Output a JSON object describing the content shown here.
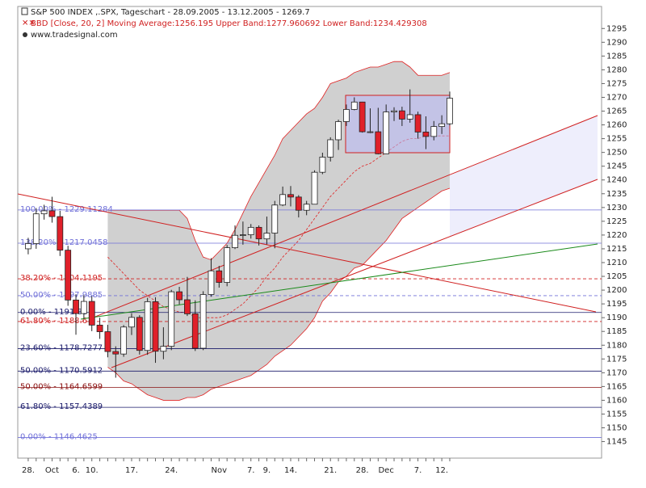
{
  "chart_data": {
    "type": "candlestick",
    "title": "S&P 500 INDEX ,.SPX, Tageschart - 28.09.2005 - 13.12.2005 - 1269.7",
    "subtitle": "BBD [Close, 20, 2] Moving Average:1256.195 Upper Band:1277.960692 Lower Band:1234.429308",
    "source": "www.tradesignal.com",
    "categories": [
      "28.",
      null,
      null,
      "Oct",
      null,
      null,
      "6.",
      null,
      "10.",
      null,
      null,
      null,
      null,
      "17.",
      null,
      null,
      null,
      null,
      "24.",
      null,
      null,
      null,
      null,
      null,
      "Nov",
      null,
      null,
      null,
      "7.",
      null,
      "9.",
      null,
      null,
      "14.",
      null,
      null,
      null,
      null,
      "21.",
      null,
      null,
      null,
      "28.",
      null,
      null,
      "Dec",
      null,
      null,
      null,
      "7.",
      null,
      null,
      "12.",
      null
    ],
    "open": [
      1215.0,
      1216.9,
      1227.7,
      1228.8,
      1226.7,
      1214.5,
      1196.4,
      1191.5,
      1195.9,
      1187.3,
      1184.9,
      1177.7,
      1176.8,
      1186.6,
      1190.1,
      1178.1,
      1195.8,
      1177.8,
      1179.6,
      1199.4,
      1196.5,
      1191.4,
      1178.9,
      1198.4,
      1207.0,
      1202.8,
      1215.4,
      1219.9,
      1220.1,
      1222.8,
      1218.6,
      1220.7,
      1230.9,
      1234.7,
      1233.8,
      1229.0,
      1231.2,
      1242.8,
      1248.3,
      1254.6,
      1261.2,
      1265.6,
      1268.3,
      1257.5,
      1257.5,
      1249.5,
      1264.7,
      1265.1,
      1262.1,
      1263.7,
      1257.4,
      1255.8,
      1259.4,
      1260.4
    ],
    "high": [
      1219.0,
      1229.8,
      1231.0,
      1233.9,
      1228.8,
      1216.1,
      1198.5,
      1198.2,
      1197.8,
      1190.0,
      1187.4,
      1179.6,
      1187.3,
      1191.6,
      1190.9,
      1197.2,
      1197.4,
      1186.5,
      1200.1,
      1201.2,
      1204.8,
      1196.3,
      1199.6,
      1211.6,
      1208.8,
      1216.4,
      1223.5,
      1224.9,
      1224.0,
      1223.5,
      1226.7,
      1232.4,
      1237.6,
      1237.8,
      1234.5,
      1232.4,
      1243.5,
      1249.9,
      1255.5,
      1261.9,
      1267.4,
      1270.0,
      1268.4,
      1266.0,
      1266.2,
      1267.4,
      1266.4,
      1266.6,
      1272.9,
      1264.8,
      1263.1,
      1261.4,
      1263.5,
      1272.1
    ],
    "low": [
      1213.0,
      1215.0,
      1225.6,
      1224.5,
      1212.4,
      1194.3,
      1183.8,
      1189.6,
      1185.1,
      1182.3,
      1175.6,
      1168.2,
      1175.8,
      1183.7,
      1176.6,
      1176.5,
      1173.6,
      1174.9,
      1178.2,
      1194.8,
      1190.6,
      1177.9,
      1178.2,
      1197.6,
      1200.9,
      1201.4,
      1214.9,
      1216.5,
      1218.7,
      1216.2,
      1216.6,
      1215.2,
      1230.5,
      1230.4,
      1226.4,
      1227.2,
      1231.2,
      1242.1,
      1246.7,
      1250.9,
      1259.6,
      1265.3,
      1257.2,
      1257.0,
      1249.3,
      1249.5,
      1261.4,
      1259.6,
      1260.8,
      1255.0,
      1251.2,
      1254.4,
      1256.7,
      1259.8
    ],
    "close": [
      1216.9,
      1227.7,
      1228.8,
      1226.7,
      1214.5,
      1196.4,
      1191.5,
      1195.9,
      1187.3,
      1184.9,
      1177.7,
      1176.8,
      1186.6,
      1190.1,
      1178.1,
      1195.8,
      1177.8,
      1179.6,
      1199.4,
      1196.5,
      1191.4,
      1178.9,
      1198.4,
      1207.0,
      1202.8,
      1215.4,
      1219.9,
      1220.1,
      1222.8,
      1218.6,
      1220.7,
      1230.9,
      1234.7,
      1233.8,
      1229.0,
      1231.2,
      1242.8,
      1248.3,
      1254.6,
      1261.2,
      1265.6,
      1268.3,
      1257.5,
      1257.5,
      1249.5,
      1264.7,
      1265.1,
      1262.1,
      1263.7,
      1257.4,
      1255.8,
      1259.4,
      1260.4,
      1269.7
    ],
    "up_color": "#ffffff",
    "down_color": "#e0202a",
    "upper_band": [
      null,
      null,
      null,
      null,
      null,
      null,
      null,
      null,
      null,
      null,
      1229,
      1229,
      1229,
      1229,
      1229,
      1229,
      1229,
      1229,
      1229,
      1229,
      1226,
      1218,
      1212,
      1211,
      1214,
      1217,
      1222,
      1228,
      1234,
      1239,
      1244,
      1249,
      1255,
      1258,
      1261,
      1264,
      1266,
      1270,
      1275,
      1276,
      1277,
      1279,
      1280,
      1281,
      1281,
      1282,
      1283,
      1283,
      1281,
      1278,
      1278,
      1278,
      1278,
      1279
    ],
    "lower_band": [
      null,
      null,
      null,
      null,
      null,
      null,
      null,
      null,
      null,
      null,
      1172,
      1170,
      1167,
      1166,
      1164,
      1162,
      1161,
      1160,
      1160,
      1160,
      1161,
      1161,
      1162,
      1164,
      1165,
      1166,
      1167,
      1168,
      1169,
      1171,
      1173,
      1176,
      1178,
      1180,
      1183,
      1186,
      1190,
      1196,
      1199,
      1203,
      1205,
      1208,
      1209,
      1212,
      1215,
      1218,
      1222,
      1226,
      1228,
      1230,
      1232,
      1234,
      1236,
      1237
    ],
    "moving_average": [
      null,
      null,
      null,
      null,
      null,
      null,
      null,
      null,
      null,
      null,
      1212,
      1209,
      1206,
      1203,
      1200,
      1198,
      1196,
      1194,
      1193,
      1192,
      1192,
      1190,
      1190,
      1190,
      1190,
      1191,
      1193,
      1195,
      1198,
      1201,
      1205,
      1208,
      1212,
      1215,
      1218,
      1222,
      1226,
      1230,
      1234,
      1237,
      1240,
      1243,
      1245,
      1246,
      1248,
      1250,
      1252,
      1254,
      1255,
      1255,
      1256,
      1256,
      1256,
      1256
    ],
    "band_color": "#c8c8c8",
    "band_line_color": "#e02020",
    "fib_levels": [
      {
        "value": 1229.11284,
        "label": "100.00% - 1229.11284",
        "color": "#7070d8",
        "dashed": false
      },
      {
        "value": 1217.0458,
        "label": "138.20% - 1217.0458",
        "color": "#7070d8",
        "dashed": false
      },
      {
        "value": 1204.1195,
        "label": "38.20% - 1204.1195",
        "color": "#d02020",
        "dashed": true
      },
      {
        "value": 1197.9885,
        "label": "50.00% - 1197.9885",
        "color": "#7070d8",
        "dashed": true
      },
      {
        "value": 1191.88,
        "label": "0.00% - 1191.88",
        "color": "#1a1a6a",
        "dashed": false
      },
      {
        "value": 1188.6,
        "label": "61.80% - 1188.6",
        "color": "#d02020",
        "dashed": true
      },
      {
        "value": 1178.7277,
        "label": "23.60% - 1178.7277",
        "color": "#1a1a6a",
        "dashed": false
      },
      {
        "value": 1170.5912,
        "label": "50.00% - 1170.5912",
        "color": "#1a1a6a",
        "dashed": false
      },
      {
        "value": 1164.6599,
        "label": "50.00% - 1164.6599",
        "color": "#8a1010",
        "dashed": false
      },
      {
        "value": 1157.4389,
        "label": "61.80% - 1157.4389",
        "color": "#1a1a6a",
        "dashed": false
      },
      {
        "value": 1146.4625,
        "label": "0.00% - 1146.4625",
        "color": "#7070d8",
        "dashed": false
      }
    ],
    "ylim": [
      1139,
      1303
    ],
    "yticks": [
      1145,
      1150,
      1155,
      1160,
      1165,
      1170,
      1175,
      1180,
      1185,
      1190,
      1195,
      1200,
      1205,
      1210,
      1215,
      1220,
      1225,
      1230,
      1235,
      1240,
      1245,
      1250,
      1255,
      1260,
      1265,
      1270,
      1275,
      1280,
      1285,
      1290,
      1295
    ]
  }
}
